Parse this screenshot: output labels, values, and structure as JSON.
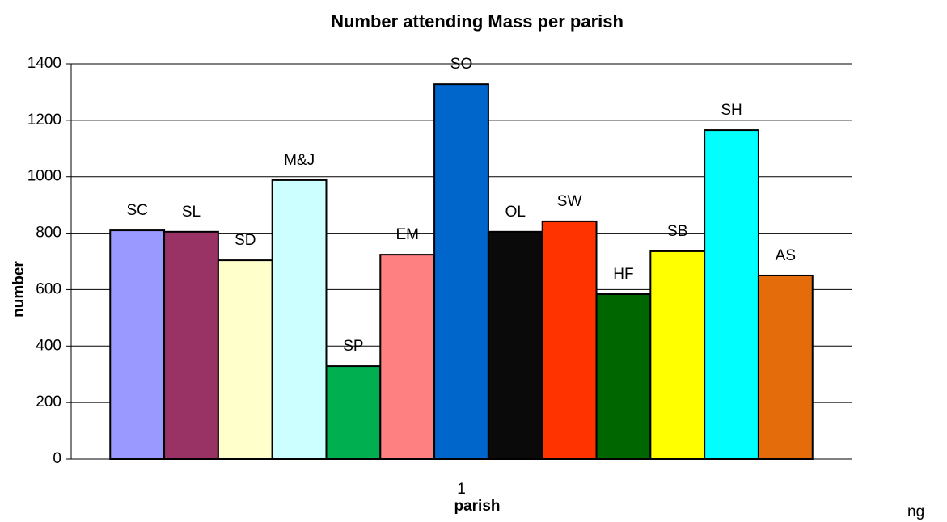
{
  "chart_data": {
    "type": "bar",
    "title": "Number attending Mass per parish",
    "x_label": "parish",
    "y_label": "number",
    "categories": [
      "1"
    ],
    "series": [
      {
        "name": "SC",
        "color": "#9999ff",
        "values": [
          810
        ]
      },
      {
        "name": "SL",
        "color": "#993366",
        "values": [
          805
        ]
      },
      {
        "name": "SD",
        "color": "#ffffcc",
        "values": [
          704
        ]
      },
      {
        "name": "M&J",
        "color": "#ccffff",
        "values": [
          988
        ]
      },
      {
        "name": "SP",
        "color": "#00b050",
        "values": [
          329
        ]
      },
      {
        "name": "EM",
        "color": "#ff8080",
        "values": [
          724
        ]
      },
      {
        "name": "SO",
        "color": "#0066cc",
        "values": [
          1328
        ]
      },
      {
        "name": "OL",
        "color": "#0a0a0a",
        "values": [
          805
        ]
      },
      {
        "name": "SW",
        "color": "#ff3300",
        "values": [
          842
        ]
      },
      {
        "name": "HF",
        "color": "#006600",
        "values": [
          584
        ]
      },
      {
        "name": "SB",
        "color": "#ffff00",
        "values": [
          736
        ]
      },
      {
        "name": "SH",
        "color": "#00ffff",
        "values": [
          1165
        ]
      },
      {
        "name": "AS",
        "color": "#e46c0a",
        "values": [
          650
        ]
      }
    ],
    "ylim": [
      0,
      1400
    ],
    "yticks": [
      0,
      200,
      400,
      600,
      800,
      1000,
      1200,
      1400
    ],
    "grid": true,
    "annotation": "ng"
  }
}
